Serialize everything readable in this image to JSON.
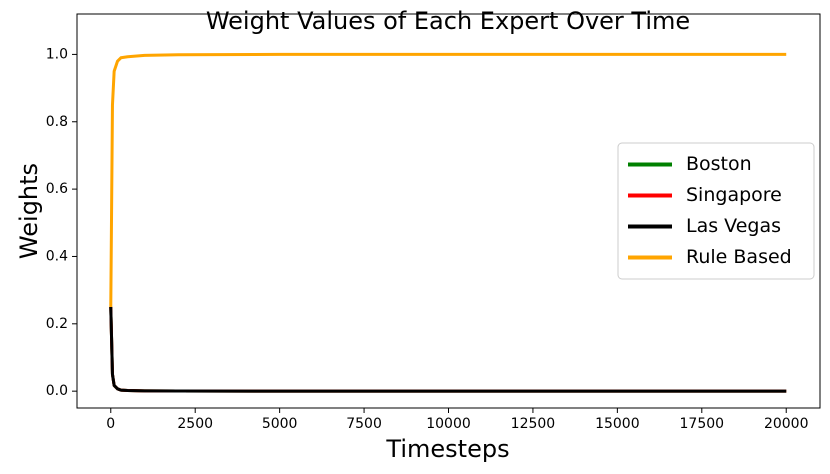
{
  "chart_data": {
    "type": "line",
    "title": "Weight Values of Each Expert Over Time",
    "x_label": "Timesteps",
    "y_label": "Weights",
    "x": [
      0,
      50,
      100,
      200,
      300,
      500,
      1000,
      2000,
      5000,
      10000,
      15000,
      20000
    ],
    "series": [
      {
        "name": "Boston",
        "color": "#008000",
        "values": [
          0.25,
          0.05,
          0.017,
          0.007,
          0.003,
          0.002,
          0.001,
          0.0003,
          0,
          0,
          0,
          0
        ]
      },
      {
        "name": "Singapore",
        "color": "#ff0000",
        "values": [
          0.25,
          0.05,
          0.017,
          0.007,
          0.003,
          0.002,
          0.001,
          0.0003,
          0,
          0,
          0,
          0
        ]
      },
      {
        "name": "Las Vegas",
        "color": "#000000",
        "values": [
          0.25,
          0.05,
          0.017,
          0.007,
          0.003,
          0.002,
          0.001,
          0.0003,
          0,
          0,
          0,
          0
        ]
      },
      {
        "name": "Rule Based",
        "color": "#ffa500",
        "values": [
          0.25,
          0.85,
          0.95,
          0.98,
          0.99,
          0.993,
          0.997,
          0.999,
          1.0,
          1.0,
          1.0,
          1.0
        ]
      }
    ],
    "xlim": [
      -1000,
      21000
    ],
    "ylim": [
      -0.05,
      1.12
    ],
    "xticks": [
      0,
      2500,
      5000,
      7500,
      10000,
      12500,
      15000,
      17500,
      20000
    ],
    "yticks": [
      {
        "value": 0,
        "label": "0.0"
      },
      {
        "value": 0.2,
        "label": "0.2"
      },
      {
        "value": 0.4,
        "label": "0.4"
      },
      {
        "value": 0.6,
        "label": "0.6"
      },
      {
        "value": 0.8,
        "label": "0.8"
      },
      {
        "value": 1,
        "label": "1.0"
      }
    ],
    "legend": "center right",
    "grid": false
  }
}
